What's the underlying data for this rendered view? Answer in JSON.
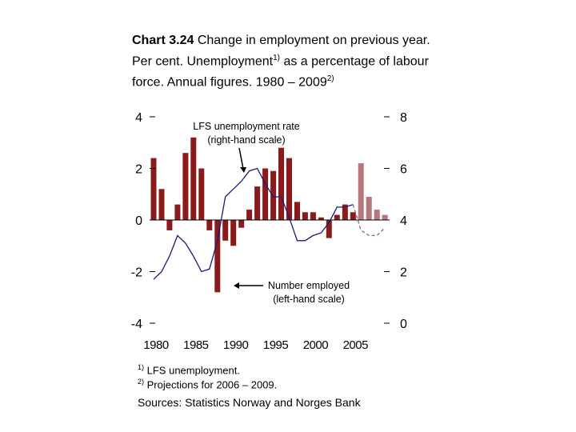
{
  "title": {
    "label": "Chart 3.24",
    "text_1": "Change in employment on previous year. Per cent. Unemployment",
    "sup_1": "1)",
    "text_2": "as a percentage of labour force. Annual figures. 1980 – 2009",
    "sup_2": "2)"
  },
  "footnotes": [
    {
      "mark": "1)",
      "text": "LFS unemployment."
    },
    {
      "mark": "2)",
      "text": "Projections for 2006 – 2009."
    }
  ],
  "source": "Sources: Statistics Norway and Norges Bank",
  "colors": {
    "bars": "#8b1a1a",
    "bars_projection": "#b5777b",
    "line": "#1a1a80",
    "line_projection": "#6e6e9e",
    "axis": "#000000"
  },
  "chart_data": {
    "type": "bar+line",
    "x_tick_labels": [
      "1980",
      "1985",
      "1990",
      "1995",
      "2000",
      "2005"
    ],
    "left_axis": {
      "ticks": [
        "4",
        "2",
        "0",
        "-2",
        "-4"
      ],
      "range": [
        -4,
        4
      ]
    },
    "right_axis": {
      "ticks": [
        "8",
        "6",
        "4",
        "2",
        "0"
      ],
      "range": [
        0,
        8
      ]
    },
    "projection_from": 2006,
    "annotations": [
      {
        "text": [
          "LFS unemployment rate",
          "(right-hand scale)"
        ]
      },
      {
        "text": [
          "Number employed",
          "(left-hand scale)"
        ]
      }
    ],
    "series": [
      {
        "name": "Number employed (left-hand scale)",
        "kind": "bar",
        "axis": "left",
        "x": [
          1980,
          1981,
          1982,
          1983,
          1984,
          1985,
          1986,
          1987,
          1988,
          1989,
          1990,
          1991,
          1992,
          1993,
          1994,
          1995,
          1996,
          1997,
          1998,
          1999,
          2000,
          2001,
          2002,
          2003,
          2004,
          2005,
          2006,
          2007,
          2008,
          2009
        ],
        "values": [
          2.4,
          1.2,
          -0.4,
          0.6,
          2.6,
          3.2,
          2.0,
          -0.4,
          -2.8,
          -0.8,
          -1.0,
          -0.3,
          0.4,
          1.3,
          2.0,
          1.9,
          2.8,
          2.4,
          0.7,
          0.3,
          0.3,
          0.1,
          -0.7,
          0.2,
          0.6,
          0.3,
          2.2,
          0.9,
          0.4,
          0.2
        ]
      },
      {
        "name": "LFS unemployment rate (right-hand scale)",
        "kind": "line",
        "axis": "right",
        "x": [
          1980,
          1981,
          1982,
          1983,
          1984,
          1985,
          1986,
          1987,
          1988,
          1989,
          1990,
          1991,
          1992,
          1993,
          1994,
          1995,
          1996,
          1997,
          1998,
          1999,
          2000,
          2001,
          2002,
          2003,
          2004,
          2005,
          2006,
          2007,
          2008,
          2009
        ],
        "values": [
          1.7,
          2.0,
          2.6,
          3.4,
          3.1,
          2.6,
          2.0,
          2.1,
          3.2,
          4.9,
          5.2,
          5.5,
          5.9,
          6.0,
          5.4,
          4.9,
          4.9,
          4.1,
          3.2,
          3.2,
          3.4,
          3.5,
          3.9,
          4.5,
          4.5,
          4.6,
          3.6,
          3.4,
          3.4,
          3.7
        ]
      }
    ]
  }
}
